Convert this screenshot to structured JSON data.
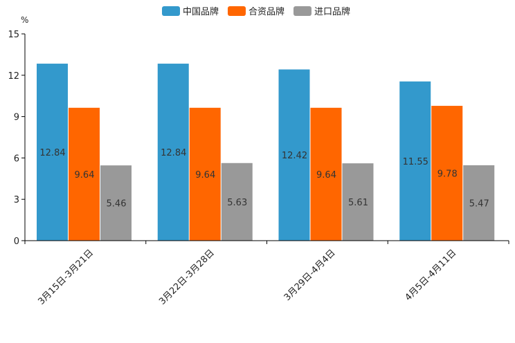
{
  "chart_data": {
    "type": "bar",
    "unit": "%",
    "categories": [
      "3月15日-3月21日",
      "3月22日-3月28日",
      "3月29日-4月4日",
      "4月5日-4月11日"
    ],
    "series": [
      {
        "name": "中国品牌",
        "color": "#3399cc",
        "values": [
          12.84,
          12.84,
          12.42,
          11.55
        ]
      },
      {
        "name": "合资品牌",
        "color": "#ff6600",
        "values": [
          9.64,
          9.64,
          9.64,
          9.78
        ]
      },
      {
        "name": "进口品牌",
        "color": "#999999",
        "values": [
          5.46,
          5.63,
          5.61,
          5.47
        ]
      }
    ],
    "ylim": [
      0,
      15
    ],
    "yticks": [
      0,
      3,
      6,
      9,
      12,
      15
    ],
    "legend_position": "top-center",
    "grid": false
  }
}
